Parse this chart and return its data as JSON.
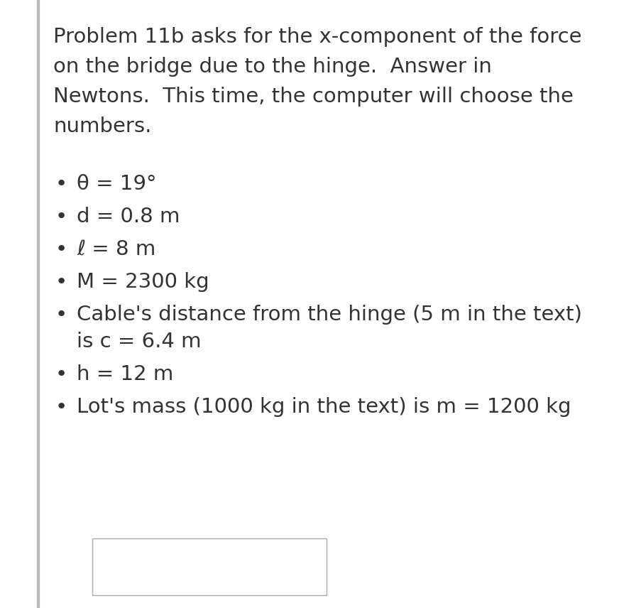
{
  "bg_color": "#ffffff",
  "left_bar_color": "#bbbbbb",
  "text_color": "#333333",
  "title_lines": [
    "Problem 11b asks for the x-component of the force",
    "on the bridge due to the hinge.  Answer in",
    "Newtons.  This time, the computer will choose the",
    "numbers."
  ],
  "bullet_items": [
    [
      "θ = 19°"
    ],
    [
      "d = 0.8 m"
    ],
    [
      "ℓ = 8 m"
    ],
    [
      "M = 2300 kg"
    ],
    [
      "Cable's distance from the hinge (5 m in the text)",
      "is c = 6.4 m"
    ],
    [
      "h = 12 m"
    ],
    [
      "Lot's mass (1000 kg in the text) is m = 1200 kg"
    ]
  ],
  "title_fontsize": 21,
  "bullet_fontsize": 21,
  "fig_width": 9.04,
  "fig_height": 8.56,
  "dpi": 100
}
